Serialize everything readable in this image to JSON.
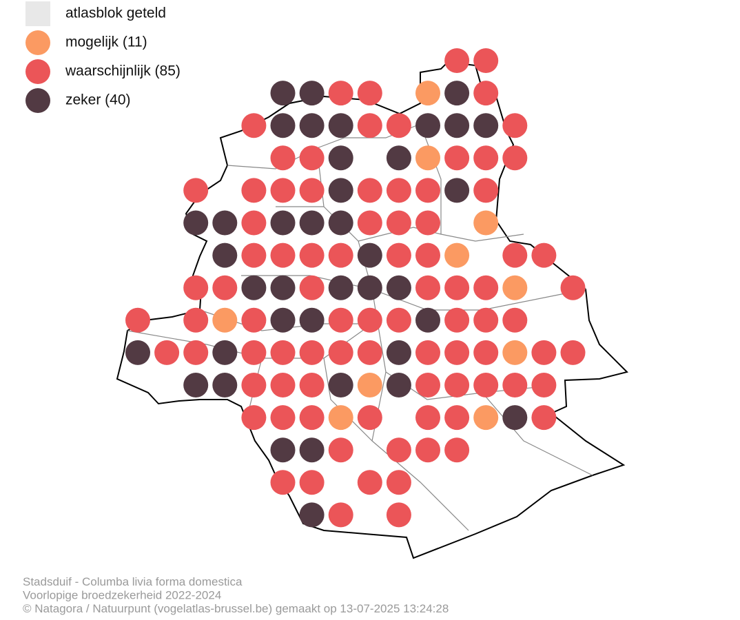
{
  "legend": [
    {
      "label": "atlasblok geteld",
      "color": "#e8e8e8"
    },
    {
      "label": "mogelijk (11)",
      "color": "#fb9a62"
    },
    {
      "label": "waarschijnlijk (85)",
      "color": "#eb5558"
    },
    {
      "label": "zeker (40)",
      "color": "#523a43"
    }
  ],
  "caption": [
    "Stadsduif - Columba livia forma domestica",
    "Voorlopige broedzekerheid 2022-2024",
    "© Natagora / Natuurpunt (vogelatlas-brussel.be) gemaakt op 13-07-2025 13:24:28"
  ]
}
